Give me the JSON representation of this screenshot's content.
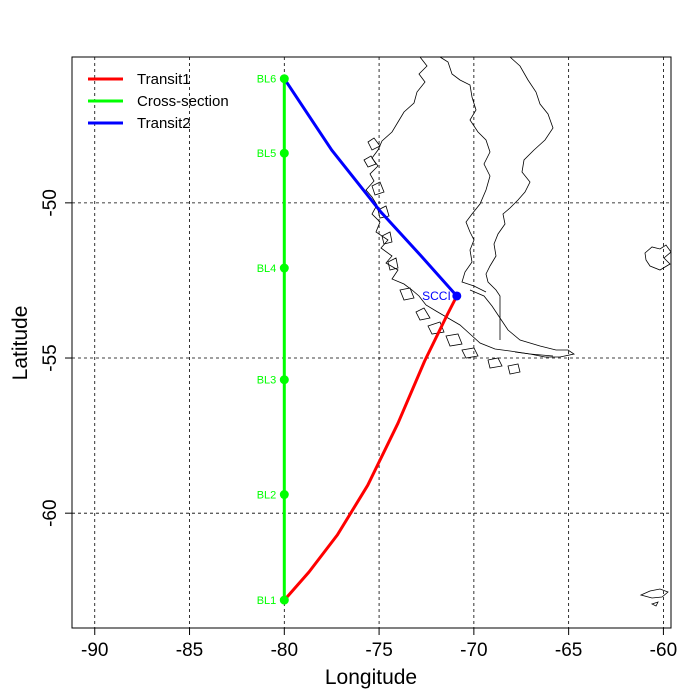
{
  "chart_data": {
    "type": "line",
    "xlabel": "Longitude",
    "ylabel": "Latitude",
    "xlim": [
      -91.2,
      -59.6
    ],
    "ylim": [
      -63.7,
      -45.3
    ],
    "x_ticks": [
      -90,
      -85,
      -80,
      -75,
      -70,
      -65,
      -60
    ],
    "y_ticks": [
      -60,
      -55,
      -50
    ],
    "grid": true,
    "legend_position": "top-left",
    "series": [
      {
        "name": "Transit1",
        "color": "#ff0000",
        "x": [
          -80.0,
          -78.7,
          -77.2,
          -75.6,
          -74.0,
          -72.6,
          -71.4,
          -70.9
        ],
        "y": [
          -62.8,
          -61.9,
          -60.7,
          -59.1,
          -57.1,
          -55.1,
          -53.6,
          -53.0
        ]
      },
      {
        "name": "Cross-section",
        "color": "#00ff00",
        "x": [
          -80.0,
          -80.0,
          -80.0,
          -80.0,
          -80.0,
          -80.0
        ],
        "y": [
          -62.8,
          -59.4,
          -55.7,
          -52.1,
          -48.4,
          -46.0
        ]
      },
      {
        "name": "Transit2",
        "color": "#0000ff",
        "x": [
          -80.0,
          -77.5,
          -74.9,
          -72.8,
          -70.9
        ],
        "y": [
          -46.0,
          -48.3,
          -50.3,
          -51.7,
          -53.0
        ]
      }
    ],
    "stations": [
      {
        "label": "BL1",
        "x": -80.0,
        "y": -62.8
      },
      {
        "label": "BL2",
        "x": -80.0,
        "y": -59.4
      },
      {
        "label": "BL3",
        "x": -80.0,
        "y": -55.7
      },
      {
        "label": "BL4",
        "x": -80.0,
        "y": -52.1
      },
      {
        "label": "BL5",
        "x": -80.0,
        "y": -48.4
      },
      {
        "label": "BL6",
        "x": -80.0,
        "y": -46.0
      }
    ],
    "port": {
      "label": "SCCI",
      "x": -70.9,
      "y": -53.0,
      "color": "#0000ff"
    },
    "coastline_color": "#000000"
  }
}
